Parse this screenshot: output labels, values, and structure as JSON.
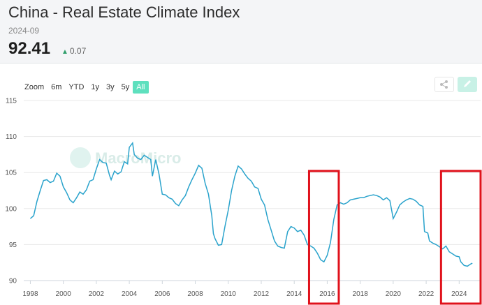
{
  "header": {
    "title": "China - Real Estate Climate Index",
    "period": "2024-09",
    "value": "92.41",
    "change": "0.07"
  },
  "toolbar": {
    "zoom_label": "Zoom",
    "ranges": [
      "6m",
      "YTD",
      "1y",
      "3y",
      "5y",
      "All"
    ],
    "active_range": "All"
  },
  "watermark": "MacroMicro",
  "colors": {
    "series": "#2aa3cc",
    "accent": "#5ee0be",
    "highlight": "#e0111b",
    "up": "#2e9e6a"
  },
  "chart_data": {
    "type": "line",
    "title": "China - Real Estate Climate Index",
    "xlabel": "",
    "ylabel": "",
    "xlim": [
      1997.6,
      2025.3
    ],
    "ylim": [
      90,
      115
    ],
    "xticks": [
      1998,
      2000,
      2002,
      2004,
      2006,
      2008,
      2010,
      2012,
      2014,
      2016,
      2018,
      2020,
      2022,
      2024
    ],
    "yticks": [
      90,
      95,
      100,
      105,
      110,
      115
    ],
    "grid": true,
    "highlights": [
      [
        2014.9,
        2016.7
      ],
      [
        2022.9,
        2025.3
      ]
    ],
    "series": [
      {
        "name": "Real Estate Climate Index",
        "points": [
          [
            1998.0,
            98.6
          ],
          [
            1998.2,
            99.0
          ],
          [
            1998.4,
            101.0
          ],
          [
            1998.6,
            102.5
          ],
          [
            1998.8,
            103.9
          ],
          [
            1999.0,
            104.0
          ],
          [
            1999.2,
            103.6
          ],
          [
            1999.4,
            103.8
          ],
          [
            1999.6,
            104.9
          ],
          [
            1999.8,
            104.5
          ],
          [
            2000.0,
            103.0
          ],
          [
            2000.2,
            102.2
          ],
          [
            2000.4,
            101.2
          ],
          [
            2000.6,
            100.8
          ],
          [
            2000.8,
            101.5
          ],
          [
            2001.0,
            102.3
          ],
          [
            2001.2,
            102.0
          ],
          [
            2001.4,
            102.6
          ],
          [
            2001.6,
            103.8
          ],
          [
            2001.8,
            104.0
          ],
          [
            2002.0,
            105.5
          ],
          [
            2002.2,
            106.8
          ],
          [
            2002.4,
            106.4
          ],
          [
            2002.6,
            106.3
          ],
          [
            2002.8,
            104.6
          ],
          [
            2002.9,
            104.0
          ],
          [
            2003.1,
            105.2
          ],
          [
            2003.3,
            104.8
          ],
          [
            2003.5,
            105.1
          ],
          [
            2003.7,
            106.5
          ],
          [
            2003.9,
            106.2
          ],
          [
            2004.0,
            108.5
          ],
          [
            2004.2,
            109.1
          ],
          [
            2004.3,
            107.5
          ],
          [
            2004.5,
            107.0
          ],
          [
            2004.7,
            106.8
          ],
          [
            2004.9,
            107.4
          ],
          [
            2005.1,
            107.1
          ],
          [
            2005.3,
            106.8
          ],
          [
            2005.4,
            104.5
          ],
          [
            2005.6,
            106.8
          ],
          [
            2005.8,
            104.8
          ],
          [
            2006.0,
            102.0
          ],
          [
            2006.2,
            101.9
          ],
          [
            2006.4,
            101.5
          ],
          [
            2006.6,
            101.3
          ],
          [
            2006.8,
            100.7
          ],
          [
            2007.0,
            100.4
          ],
          [
            2007.2,
            101.2
          ],
          [
            2007.4,
            101.8
          ],
          [
            2007.6,
            103.0
          ],
          [
            2007.8,
            104.0
          ],
          [
            2008.0,
            104.9
          ],
          [
            2008.2,
            106.0
          ],
          [
            2008.4,
            105.6
          ],
          [
            2008.6,
            103.5
          ],
          [
            2008.8,
            102.0
          ],
          [
            2009.0,
            99.0
          ],
          [
            2009.1,
            96.5
          ],
          [
            2009.2,
            95.8
          ],
          [
            2009.4,
            94.9
          ],
          [
            2009.6,
            95.0
          ],
          [
            2009.8,
            97.5
          ],
          [
            2010.0,
            99.8
          ],
          [
            2010.2,
            102.5
          ],
          [
            2010.4,
            104.5
          ],
          [
            2010.6,
            105.9
          ],
          [
            2010.8,
            105.5
          ],
          [
            2011.0,
            104.8
          ],
          [
            2011.2,
            104.2
          ],
          [
            2011.4,
            103.8
          ],
          [
            2011.6,
            103.0
          ],
          [
            2011.8,
            102.8
          ],
          [
            2012.0,
            101.3
          ],
          [
            2012.2,
            100.5
          ],
          [
            2012.4,
            98.5
          ],
          [
            2012.6,
            97.0
          ],
          [
            2012.8,
            95.5
          ],
          [
            2013.0,
            94.8
          ],
          [
            2013.2,
            94.6
          ],
          [
            2013.4,
            94.5
          ],
          [
            2013.6,
            96.8
          ],
          [
            2013.8,
            97.5
          ],
          [
            2014.0,
            97.3
          ],
          [
            2014.2,
            96.8
          ],
          [
            2014.4,
            97.0
          ],
          [
            2014.6,
            96.3
          ],
          [
            2014.8,
            95.0
          ],
          [
            2015.0,
            94.8
          ],
          [
            2015.2,
            94.5
          ],
          [
            2015.4,
            93.8
          ],
          [
            2015.6,
            92.9
          ],
          [
            2015.8,
            92.6
          ],
          [
            2016.0,
            93.5
          ],
          [
            2016.2,
            95.3
          ],
          [
            2016.4,
            98.5
          ],
          [
            2016.6,
            100.5
          ],
          [
            2016.8,
            100.8
          ],
          [
            2017.0,
            100.6
          ],
          [
            2017.2,
            100.8
          ],
          [
            2017.4,
            101.2
          ],
          [
            2017.6,
            101.3
          ],
          [
            2017.8,
            101.4
          ],
          [
            2018.0,
            101.5
          ],
          [
            2018.2,
            101.5
          ],
          [
            2018.4,
            101.7
          ],
          [
            2018.6,
            101.8
          ],
          [
            2018.8,
            101.9
          ],
          [
            2019.0,
            101.8
          ],
          [
            2019.2,
            101.6
          ],
          [
            2019.4,
            101.2
          ],
          [
            2019.6,
            101.5
          ],
          [
            2019.8,
            101.1
          ],
          [
            2020.0,
            98.6
          ],
          [
            2020.2,
            99.5
          ],
          [
            2020.4,
            100.5
          ],
          [
            2020.6,
            100.9
          ],
          [
            2020.8,
            101.2
          ],
          [
            2021.0,
            101.4
          ],
          [
            2021.2,
            101.3
          ],
          [
            2021.4,
            101.0
          ],
          [
            2021.6,
            100.5
          ],
          [
            2021.8,
            100.3
          ],
          [
            2021.9,
            96.8
          ],
          [
            2022.1,
            96.6
          ],
          [
            2022.2,
            95.5
          ],
          [
            2022.4,
            95.2
          ],
          [
            2022.6,
            95.0
          ],
          [
            2022.8,
            94.7
          ],
          [
            2023.0,
            94.4
          ],
          [
            2023.2,
            94.8
          ],
          [
            2023.4,
            94.0
          ],
          [
            2023.6,
            93.7
          ],
          [
            2023.8,
            93.4
          ],
          [
            2024.0,
            93.3
          ],
          [
            2024.1,
            92.6
          ],
          [
            2024.3,
            92.1
          ],
          [
            2024.5,
            92.0
          ],
          [
            2024.7,
            92.3
          ],
          [
            2024.8,
            92.41
          ]
        ]
      }
    ]
  }
}
